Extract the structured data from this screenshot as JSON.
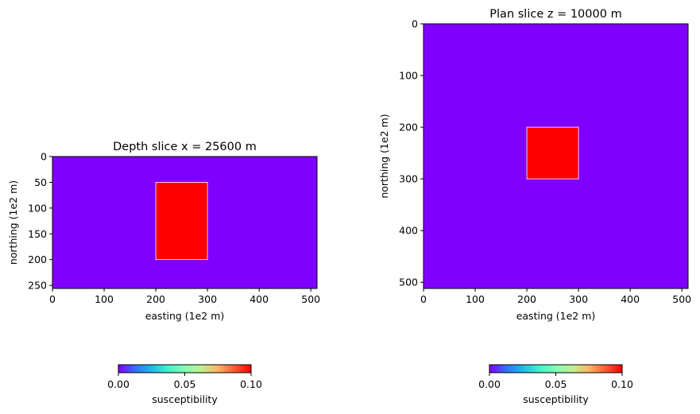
{
  "colorscale": {
    "name": "rainbow",
    "stops": [
      "#8000ff",
      "#3070fa",
      "#1fb8e8",
      "#40f0cc",
      "#80ffb4",
      "#c0f090",
      "#ffb464",
      "#ff5a30",
      "#ff0000"
    ]
  },
  "chart_data": [
    {
      "type": "heatmap",
      "title": "Depth slice x = 25600 m",
      "xlabel": "easting (1e2 m)",
      "ylabel": "northing (1e2 m)",
      "xlim": [
        0,
        512
      ],
      "ylim": [
        256,
        0
      ],
      "y_inverted": true,
      "xticks": [
        0,
        100,
        200,
        300,
        400,
        500
      ],
      "yticks": [
        0,
        50,
        100,
        150,
        200,
        250
      ],
      "background_value": 0.0,
      "anomalies": [
        {
          "x0": 200,
          "x1": 300,
          "y0": 50,
          "y1": 200,
          "value": 0.1
        }
      ],
      "colorbar": {
        "label": "susceptibility",
        "min": 0.0,
        "max": 0.1,
        "ticks": [
          "0.00",
          "0.05",
          "0.10"
        ]
      }
    },
    {
      "type": "heatmap",
      "title": "Plan slice z = 10000 m",
      "xlabel": "easting (1e2 m)",
      "ylabel": "northing (1e2 m)",
      "xlim": [
        0,
        512
      ],
      "ylim": [
        512,
        0
      ],
      "y_inverted": true,
      "xticks": [
        0,
        100,
        200,
        300,
        400,
        500
      ],
      "yticks": [
        0,
        100,
        200,
        300,
        400,
        500
      ],
      "background_value": 0.0,
      "anomalies": [
        {
          "x0": 200,
          "x1": 300,
          "y0": 200,
          "y1": 300,
          "value": 0.1
        }
      ],
      "colorbar": {
        "label": "susceptibility",
        "min": 0.0,
        "max": 0.1,
        "ticks": [
          "0.00",
          "0.05",
          "0.10"
        ]
      }
    }
  ]
}
